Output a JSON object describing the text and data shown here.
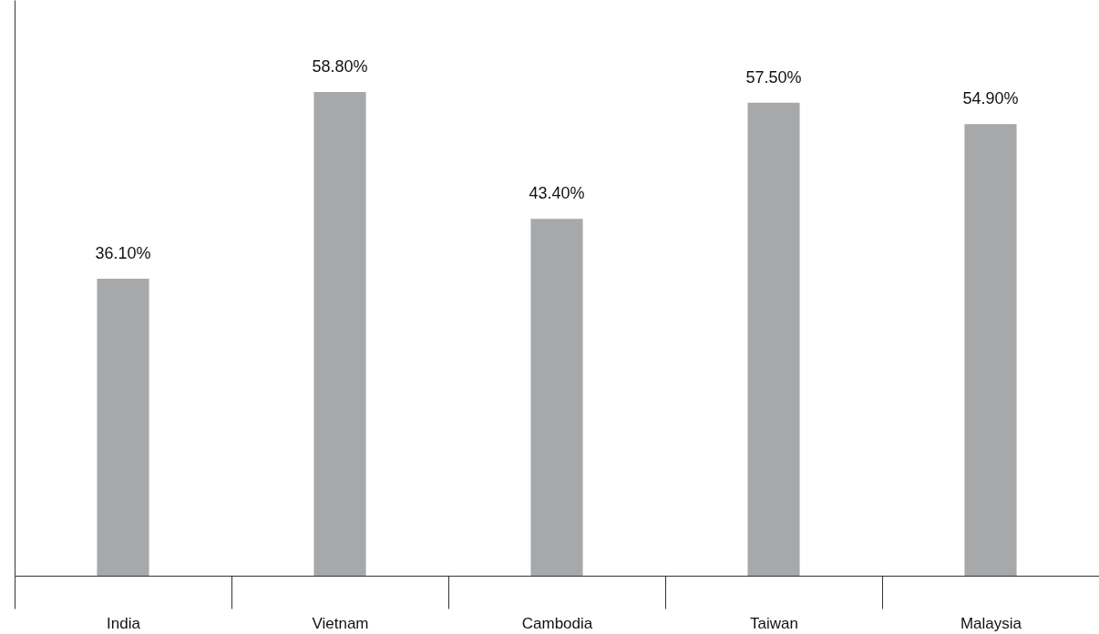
{
  "chart_data": {
    "type": "bar",
    "categories": [
      "India",
      "Vietnam",
      "Cambodia",
      "Taiwan",
      "Malaysia"
    ],
    "values": [
      36.1,
      58.8,
      43.4,
      57.5,
      54.9
    ],
    "value_labels": [
      "36.10%",
      "58.80%",
      "43.40%",
      "57.50%",
      "54.90%"
    ],
    "color": "#a7a8aa",
    "ylim": [
      0,
      70
    ],
    "tick_labels": "x",
    "grid": false
  }
}
